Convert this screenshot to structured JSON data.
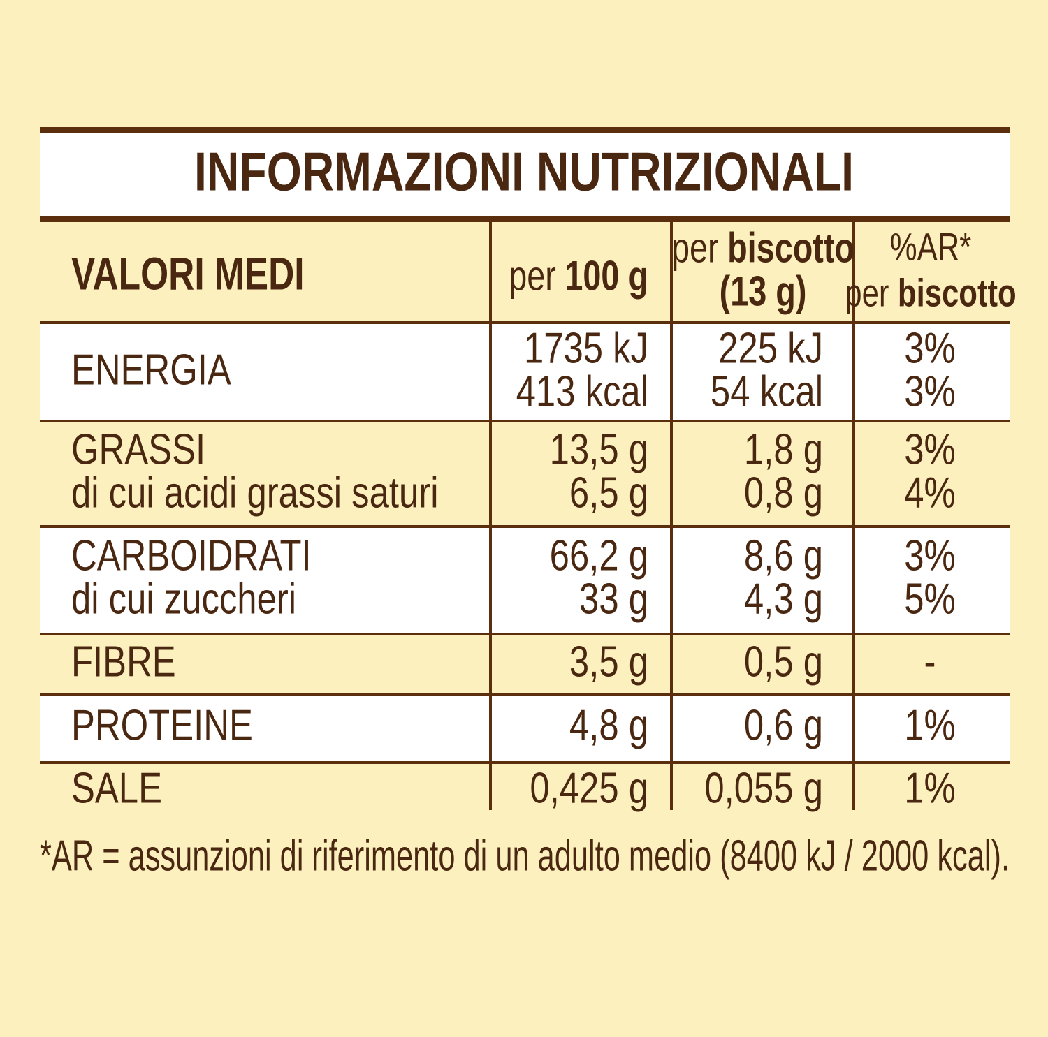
{
  "title": "INFORMAZIONI NUTRIZIONALI",
  "header": {
    "label": "VALORI MEDI",
    "columns": [
      [
        [
          {
            "text": "per",
            "bold": false
          },
          {
            "text": "100 g",
            "bold": true
          }
        ]
      ],
      [
        [
          {
            "text": "per",
            "bold": false
          },
          {
            "text": "biscotto",
            "bold": true
          }
        ],
        [
          {
            "text": "(13 g)",
            "bold": true
          }
        ]
      ],
      [
        [
          {
            "text": "%AR*",
            "bold": false
          }
        ],
        [
          {
            "text": "per",
            "bold": false
          },
          {
            "text": "biscotto",
            "bold": true
          }
        ]
      ]
    ]
  },
  "rows": [
    {
      "label": [
        "ENERGIA"
      ],
      "values": [
        [
          "1735 kJ",
          "413 kcal"
        ],
        [
          "225 kJ",
          "54 kcal"
        ],
        [
          "3%",
          "3%"
        ]
      ]
    },
    {
      "label": [
        "GRASSI",
        "di cui acidi grassi saturi"
      ],
      "values": [
        [
          "13,5 g",
          "6,5 g"
        ],
        [
          "1,8 g",
          "0,8 g"
        ],
        [
          "3%",
          "4%"
        ]
      ]
    },
    {
      "label": [
        "CARBOIDRATI",
        "di cui zuccheri"
      ],
      "values": [
        [
          "66,2 g",
          "33 g"
        ],
        [
          "8,6 g",
          "4,3 g"
        ],
        [
          "3%",
          "5%"
        ]
      ]
    },
    {
      "label": [
        "FIBRE"
      ],
      "values": [
        [
          "3,5 g"
        ],
        [
          "0,5 g"
        ],
        [
          "-"
        ]
      ]
    },
    {
      "label": [
        "PROTEINE"
      ],
      "values": [
        [
          "4,8 g"
        ],
        [
          "0,6 g"
        ],
        [
          "1%"
        ]
      ]
    },
    {
      "label": [
        "SALE"
      ],
      "values": [
        [
          "0,425 g"
        ],
        [
          "0,055 g"
        ],
        [
          "1%"
        ]
      ]
    }
  ],
  "footnote": "*AR = assunzioni di riferimento di un adulto medio (8400 kJ / 2000 kcal)."
}
